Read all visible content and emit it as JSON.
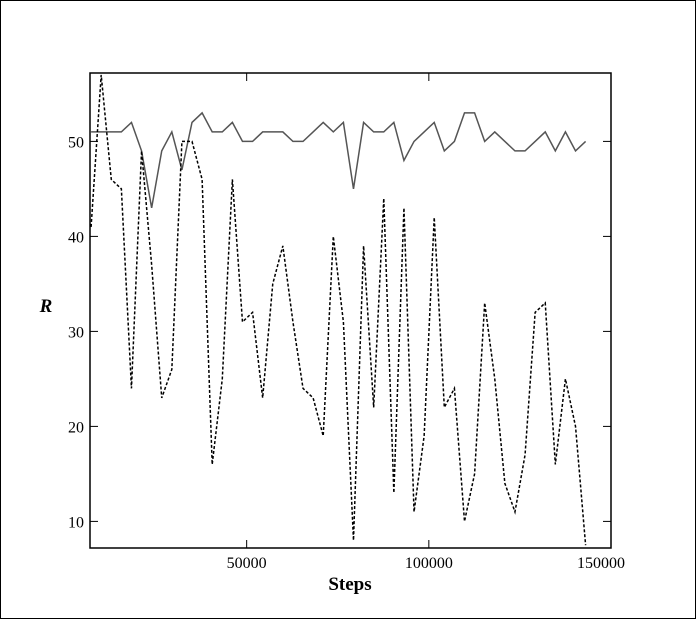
{
  "chart_data": {
    "type": "line",
    "x_label": "Steps",
    "y_label": "R",
    "x": [
      7300,
      10070,
      12840,
      15610,
      18380,
      21150,
      23920,
      26690,
      29460,
      32230,
      35000,
      37770,
      40540,
      43310,
      46080,
      48850,
      51620,
      54390,
      57160,
      59930,
      62700,
      65470,
      68240,
      71010,
      73780,
      76550,
      79320,
      82090,
      84860,
      87630,
      90400,
      93170,
      95940,
      98710,
      101480,
      104250,
      107020,
      109790,
      112560,
      115330,
      118100,
      120870,
      123640,
      126410,
      129180,
      131950,
      134720,
      137490,
      140260,
      143030
    ],
    "series": [
      {
        "color": "#555555",
        "dash": "solid",
        "values": [
          51,
          51,
          51,
          51,
          52,
          49,
          43,
          49,
          51,
          47,
          52,
          53,
          51,
          51,
          52,
          50,
          50,
          51,
          51,
          51,
          50,
          50,
          51,
          52,
          51,
          52,
          45,
          52,
          51,
          51,
          52,
          48,
          50,
          51,
          52,
          49,
          50,
          53,
          53,
          50,
          51,
          50,
          49,
          49,
          50,
          51,
          49,
          51,
          49,
          50
        ]
      },
      {
        "color": "#000000",
        "dash": "dotted",
        "values": [
          41,
          57,
          46,
          45,
          24,
          49,
          37,
          23,
          26,
          50,
          50,
          46,
          16,
          25,
          46,
          31,
          32,
          23,
          35,
          39,
          31,
          24,
          23,
          19,
          40,
          31,
          8,
          39,
          22,
          44,
          13,
          43,
          11,
          19,
          42,
          22,
          24,
          10,
          15,
          33,
          25,
          14,
          11,
          17,
          32,
          33,
          16,
          25,
          20,
          7.5
        ]
      }
    ],
    "xlim": [
      7000,
      150000
    ],
    "xticks": [
      50000,
      100000,
      150000
    ],
    "ylim": [
      7.2,
      57.2
    ],
    "yticks": [
      10,
      20,
      30,
      40,
      50
    ]
  }
}
